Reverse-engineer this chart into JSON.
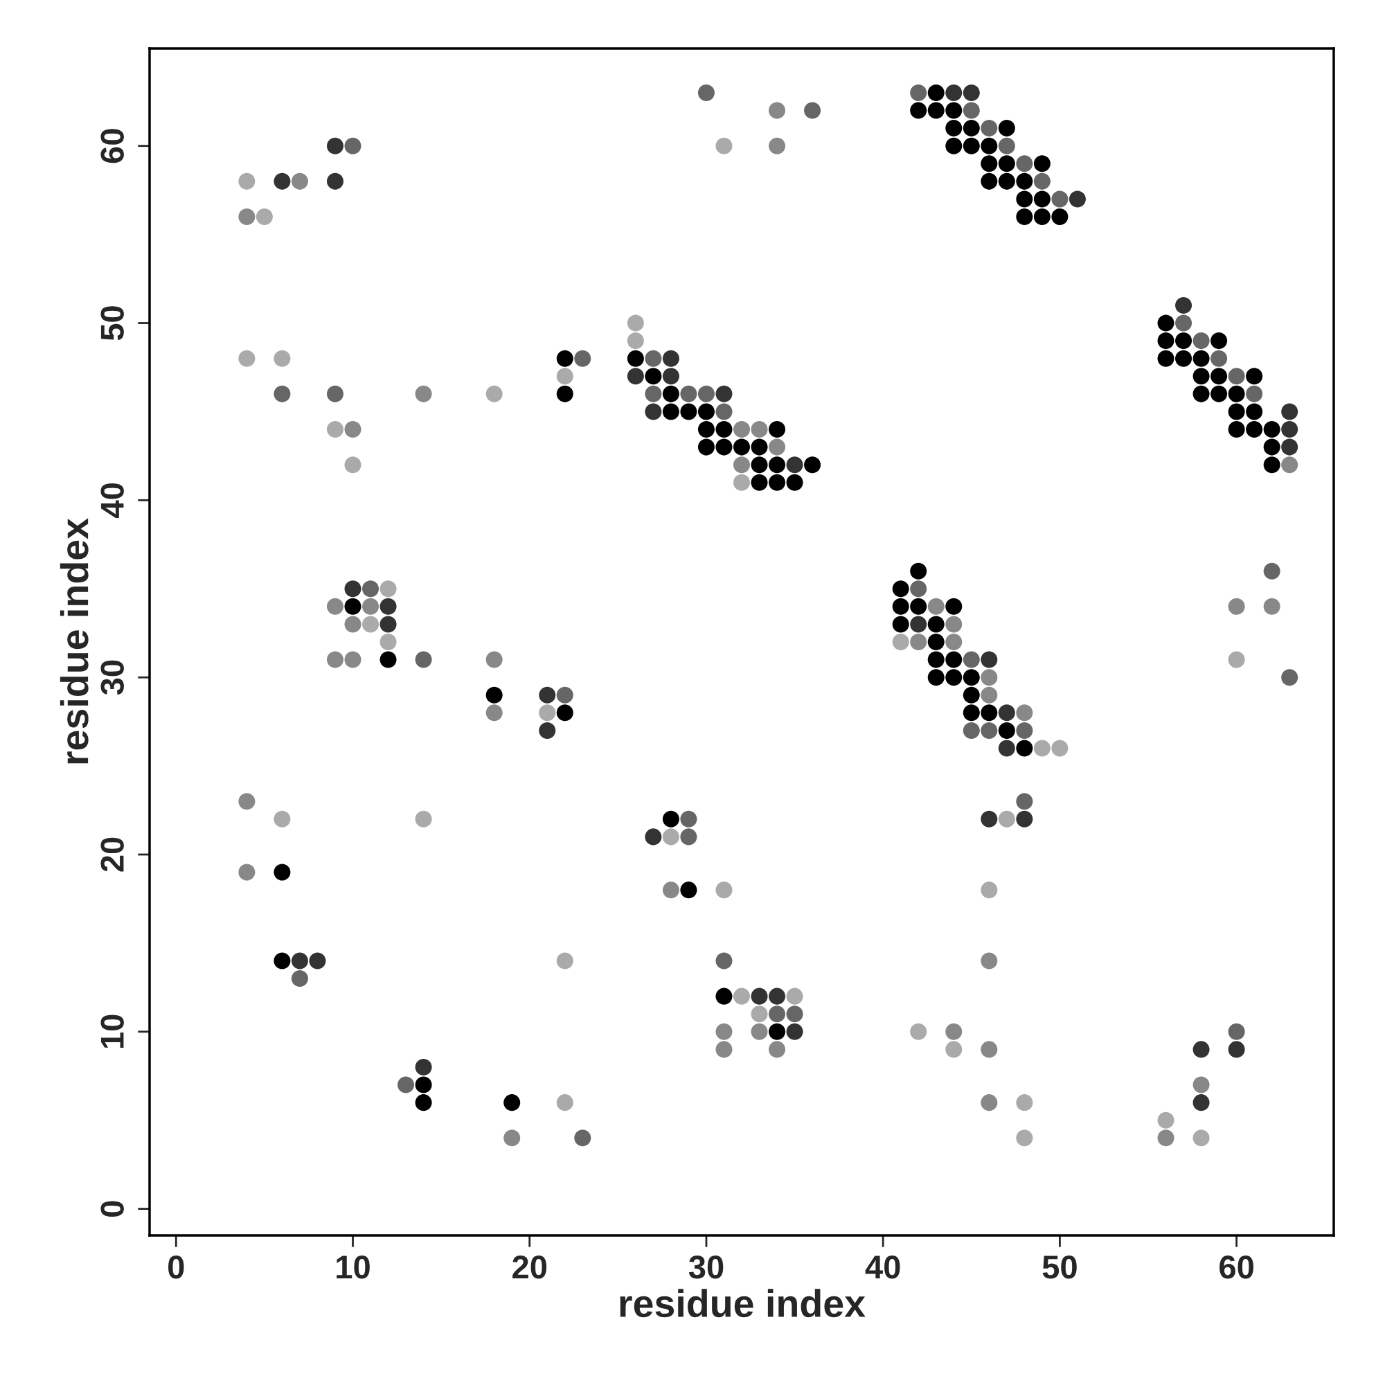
{
  "chart_data": {
    "type": "scatter",
    "xlabel": "residue index",
    "ylabel": "residue index",
    "marker": "circle",
    "grid": false,
    "xlim": [
      -1.5,
      65.5
    ],
    "ylim": [
      -1.5,
      65.5
    ],
    "xticks": [
      0,
      10,
      20,
      30,
      40,
      50,
      60
    ],
    "yticks": [
      0,
      10,
      20,
      30,
      40,
      50,
      60
    ],
    "series": [
      {
        "color": "#000000",
        "x": [
          43,
          42,
          43,
          44,
          44,
          45,
          47,
          44,
          45,
          46,
          46,
          47,
          49,
          46,
          47,
          48,
          48,
          49,
          48,
          49,
          50,
          56,
          56,
          57,
          59,
          22,
          26,
          56,
          57,
          58,
          27,
          58,
          59,
          61,
          22,
          28,
          58,
          59,
          60,
          28,
          29,
          30,
          60,
          61,
          30,
          31,
          34,
          60,
          61,
          62,
          30,
          31,
          32,
          33,
          62,
          33,
          34,
          36,
          62,
          33,
          34,
          35,
          42,
          41,
          10,
          41,
          42,
          44,
          41,
          43,
          43,
          12,
          43,
          44,
          43,
          44,
          45,
          18,
          45,
          22,
          45,
          46,
          47,
          48,
          28,
          6,
          29,
          6,
          31,
          34,
          14,
          14,
          19
        ],
        "values": [
          63,
          62,
          62,
          62,
          61,
          61,
          61,
          60,
          60,
          60,
          59,
          59,
          59,
          58,
          58,
          58,
          57,
          57,
          56,
          56,
          56,
          50,
          49,
          49,
          49,
          48,
          48,
          48,
          48,
          48,
          47,
          47,
          47,
          47,
          46,
          46,
          46,
          46,
          46,
          45,
          45,
          45,
          45,
          45,
          44,
          44,
          44,
          44,
          44,
          44,
          43,
          43,
          43,
          43,
          43,
          42,
          42,
          42,
          42,
          41,
          41,
          41,
          36,
          35,
          34,
          34,
          34,
          34,
          33,
          33,
          32,
          31,
          31,
          31,
          30,
          30,
          30,
          29,
          29,
          28,
          28,
          28,
          27,
          26,
          22,
          19,
          18,
          14,
          12,
          10,
          7,
          6,
          6
        ]
      },
      {
        "color": "#333333",
        "x": [
          44,
          45,
          9,
          6,
          9,
          51,
          57,
          28,
          26,
          28,
          31,
          27,
          63,
          63,
          63,
          35,
          10,
          12,
          12,
          42,
          46,
          21,
          47,
          21,
          47,
          46,
          48,
          27,
          7,
          8,
          33,
          34,
          35,
          58,
          60,
          14,
          58
        ],
        "values": [
          63,
          63,
          60,
          58,
          58,
          57,
          51,
          48,
          47,
          47,
          46,
          45,
          45,
          44,
          43,
          42,
          35,
          34,
          33,
          33,
          31,
          29,
          28,
          27,
          26,
          22,
          22,
          21,
          14,
          14,
          12,
          12,
          10,
          9,
          9,
          8,
          6
        ]
      },
      {
        "color": "#666666",
        "x": [
          30,
          42,
          36,
          45,
          46,
          10,
          47,
          48,
          49,
          50,
          57,
          58,
          23,
          27,
          59,
          60,
          6,
          9,
          27,
          29,
          30,
          61,
          31,
          62,
          11,
          42,
          14,
          45,
          63,
          22,
          45,
          46,
          48,
          48,
          29,
          29,
          31,
          7,
          34,
          35,
          60,
          13,
          23
        ],
        "values": [
          63,
          63,
          62,
          62,
          61,
          60,
          60,
          59,
          58,
          57,
          50,
          49,
          48,
          48,
          48,
          47,
          46,
          46,
          46,
          46,
          46,
          46,
          45,
          36,
          35,
          35,
          31,
          31,
          30,
          29,
          27,
          27,
          27,
          23,
          22,
          21,
          14,
          13,
          11,
          11,
          10,
          7,
          4
        ]
      },
      {
        "color": "#888888",
        "x": [
          34,
          34,
          7,
          4,
          14,
          10,
          32,
          33,
          34,
          32,
          63,
          9,
          11,
          43,
          60,
          62,
          10,
          44,
          42,
          44,
          9,
          10,
          18,
          46,
          46,
          18,
          48,
          4,
          4,
          28,
          46,
          31,
          33,
          44,
          31,
          34,
          46,
          58,
          46,
          19,
          56
        ],
        "values": [
          62,
          60,
          58,
          56,
          46,
          44,
          44,
          44,
          43,
          42,
          42,
          34,
          34,
          34,
          34,
          34,
          33,
          33,
          32,
          32,
          31,
          31,
          31,
          30,
          29,
          28,
          28,
          23,
          19,
          18,
          14,
          10,
          10,
          10,
          9,
          9,
          9,
          7,
          6,
          4,
          4
        ]
      },
      {
        "color": "#aaaaaa",
        "x": [
          31,
          4,
          5,
          26,
          26,
          4,
          6,
          22,
          18,
          9,
          10,
          32,
          12,
          11,
          12,
          41,
          60,
          21,
          49,
          50,
          6,
          14,
          47,
          28,
          31,
          46,
          22,
          32,
          35,
          33,
          42,
          44,
          22,
          48,
          56,
          48,
          58
        ],
        "values": [
          60,
          58,
          56,
          50,
          49,
          48,
          48,
          47,
          46,
          44,
          42,
          41,
          35,
          33,
          32,
          32,
          31,
          28,
          26,
          26,
          22,
          22,
          22,
          21,
          18,
          18,
          14,
          12,
          12,
          11,
          10,
          9,
          6,
          6,
          5,
          4,
          4
        ]
      }
    ]
  }
}
